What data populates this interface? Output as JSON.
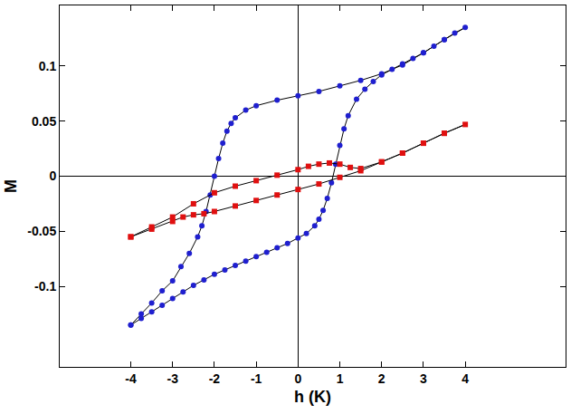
{
  "chart_data": {
    "type": "line",
    "x_label": "h (K)",
    "y_label": "M",
    "xlim": [
      -5.7,
      6.4
    ],
    "ylim": [
      -0.173,
      0.155
    ],
    "xticks": [
      -4,
      -3,
      -2,
      -1,
      0,
      1,
      2,
      3,
      4
    ],
    "yticks": [
      -0.1,
      -0.05,
      0,
      0.05,
      0.1
    ],
    "grid": false,
    "series": [
      {
        "color": "#1f1fcf",
        "marker": "circle",
        "line_style": "solid",
        "x": [
          -4,
          -3.75,
          -3.5,
          -3.25,
          -3,
          -2.75,
          -2.5,
          -2.25,
          -2,
          -1.75,
          -1.5,
          -1.25,
          -1,
          -0.75,
          -0.5,
          -0.25,
          0,
          0.2,
          0.4,
          0.5,
          0.6,
          0.7,
          0.8,
          0.9,
          1.0,
          1.1,
          1.2,
          1.4,
          1.6,
          1.8,
          2,
          2.25,
          2.5,
          2.75,
          3,
          3.25,
          3.5,
          3.75,
          4,
          3.5,
          3,
          2.5,
          2,
          1.5,
          1,
          0.5,
          0,
          -0.5,
          -1,
          -1.25,
          -1.5,
          -1.6,
          -1.7,
          -1.8,
          -1.9,
          -2.0,
          -2.1,
          -2.2,
          -2.3,
          -2.4,
          -2.6,
          -2.8,
          -3,
          -3.25,
          -3.5,
          -3.75,
          -4
        ],
        "values": [
          -0.135,
          -0.129,
          -0.123,
          -0.117,
          -0.111,
          -0.105,
          -0.099,
          -0.094,
          -0.089,
          -0.085,
          -0.081,
          -0.077,
          -0.073,
          -0.069,
          -0.065,
          -0.061,
          -0.056,
          -0.052,
          -0.045,
          -0.039,
          -0.031,
          -0.02,
          -0.006,
          0.011,
          0.028,
          0.043,
          0.055,
          0.07,
          0.079,
          0.086,
          0.092,
          0.097,
          0.102,
          0.107,
          0.112,
          0.118,
          0.124,
          0.13,
          0.135,
          0.124,
          0.112,
          0.101,
          0.093,
          0.087,
          0.082,
          0.077,
          0.073,
          0.069,
          0.064,
          0.06,
          0.053,
          0.048,
          0.041,
          0.03,
          0.016,
          0.0,
          -0.017,
          -0.032,
          -0.045,
          -0.055,
          -0.07,
          -0.082,
          -0.095,
          -0.104,
          -0.115,
          -0.125,
          -0.135
        ]
      },
      {
        "color": "#e01010",
        "marker": "square",
        "line_style": "solid",
        "x": [
          -4,
          -3.5,
          -3,
          -2.75,
          -2.5,
          -2.25,
          -2,
          -1.5,
          -1,
          -0.5,
          0,
          0.5,
          1,
          1.5,
          2,
          2.5,
          3,
          3.5,
          4,
          3.5,
          3,
          2.5,
          2,
          1.5,
          1.25,
          1,
          0.75,
          0.5,
          0.25,
          0,
          -0.5,
          -1,
          -1.5,
          -2,
          -2.5,
          -3,
          -3.5,
          -4
        ],
        "values": [
          -0.055,
          -0.048,
          -0.041,
          -0.037,
          -0.035,
          -0.034,
          -0.032,
          -0.027,
          -0.022,
          -0.017,
          -0.012,
          -0.007,
          -0.001,
          0.005,
          0.013,
          0.021,
          0.03,
          0.039,
          0.047,
          0.039,
          0.03,
          0.021,
          0.013,
          0.007,
          0.008,
          0.011,
          0.012,
          0.011,
          0.009,
          0.006,
          0.001,
          -0.004,
          -0.009,
          -0.015,
          -0.025,
          -0.037,
          -0.046,
          -0.055
        ]
      }
    ]
  }
}
